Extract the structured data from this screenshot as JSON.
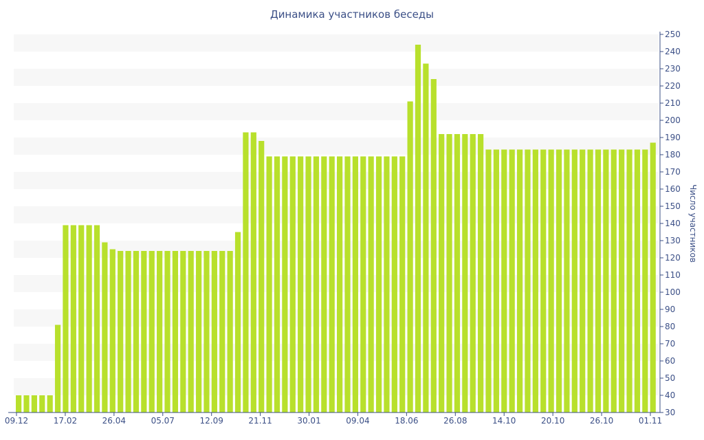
{
  "chart_data": {
    "type": "bar",
    "title": "Динамика участников беседы",
    "xlabel": "",
    "ylabel": "Число участников",
    "ylim": [
      30,
      250
    ],
    "y_ticks": [
      30,
      40,
      50,
      60,
      70,
      80,
      90,
      100,
      110,
      120,
      130,
      140,
      150,
      160,
      170,
      180,
      190,
      200,
      210,
      220,
      230,
      240,
      250
    ],
    "x_tick_labels": [
      "09.12",
      "17.02",
      "26.04",
      "05.07",
      "12.09",
      "21.11",
      "30.01",
      "09.04",
      "18.06",
      "26.08",
      "14.10",
      "20.10",
      "26.10",
      "01.11"
    ],
    "grid": "horizontal alternating bands",
    "y_axis_position": "right",
    "bar_color": "#b8e02c",
    "values": [
      40,
      40,
      40,
      40,
      40,
      81,
      139,
      139,
      139,
      139,
      139,
      129,
      125,
      124,
      124,
      124,
      124,
      124,
      124,
      124,
      124,
      124,
      124,
      124,
      124,
      124,
      124,
      124,
      135,
      193,
      193,
      188,
      179,
      179,
      179,
      179,
      179,
      179,
      179,
      179,
      179,
      179,
      179,
      179,
      179,
      179,
      179,
      179,
      179,
      179,
      211,
      244,
      233,
      224,
      192,
      192,
      192,
      192,
      192,
      192,
      183,
      183,
      183,
      183,
      183,
      183,
      183,
      183,
      183,
      183,
      183,
      183,
      183,
      183,
      183,
      183,
      183,
      183,
      183,
      183,
      183,
      187
    ]
  }
}
